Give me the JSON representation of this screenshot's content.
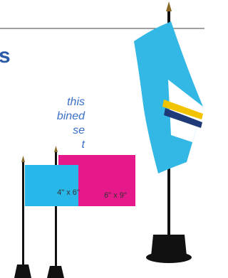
{
  "heading": "s",
  "paragraph": [
    "this",
    "bined",
    "se",
    "t"
  ],
  "flags": [
    {
      "label": "4\" x 6\""
    },
    {
      "label": "6\" x 9\""
    }
  ]
}
